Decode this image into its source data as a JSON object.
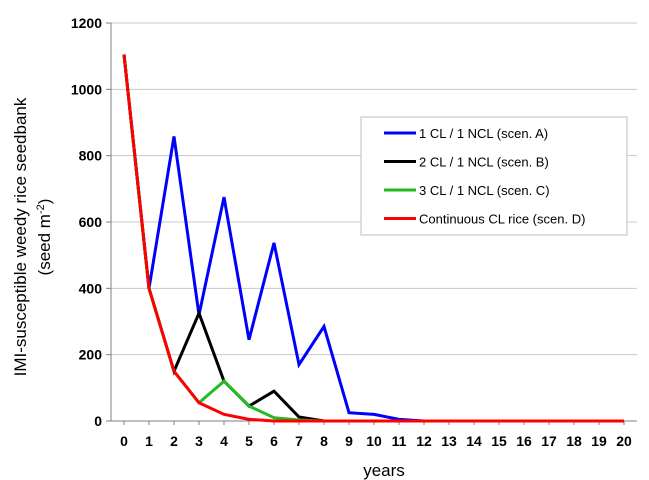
{
  "chart_data": {
    "type": "line",
    "xlabel": "years",
    "ylabel_line1": "IMI-susceptible weedy rice seedbank",
    "ylabel_line2_prefix": "(seed m",
    "ylabel_line2_sup": "-2",
    "ylabel_line2_suffix": ")",
    "xlim": [
      0,
      20
    ],
    "ylim": [
      0,
      1200
    ],
    "yticks": [
      0,
      200,
      400,
      600,
      800,
      1000,
      1200
    ],
    "x": [
      0,
      1,
      2,
      3,
      4,
      5,
      6,
      7,
      8,
      9,
      10,
      11,
      12,
      13,
      14,
      15,
      16,
      17,
      18,
      19,
      20
    ],
    "grid": "horizontal",
    "legend_position": "upper-right",
    "series": [
      {
        "name": "1 CL / 1 NCL (scen. A)",
        "color": "#0000ff",
        "values": [
          1105,
          400,
          858,
          320,
          675,
          245,
          537,
          170,
          285,
          25,
          20,
          5,
          0,
          0,
          0,
          0,
          0,
          0,
          0,
          0,
          0
        ]
      },
      {
        "name": "2 CL / 1 NCL (scen. B)",
        "color": "#000000",
        "values": [
          1105,
          400,
          150,
          325,
          120,
          45,
          90,
          12,
          0,
          0,
          0,
          0,
          0,
          0,
          0,
          0,
          0,
          0,
          0,
          0,
          0
        ]
      },
      {
        "name": "3 CL / 1 NCL (scen. C)",
        "color": "#22bb22",
        "values": [
          1105,
          400,
          150,
          55,
          120,
          45,
          10,
          3,
          0,
          0,
          0,
          0,
          0,
          0,
          0,
          0,
          0,
          0,
          0,
          0,
          0
        ]
      },
      {
        "name": "Continuous CL rice (scen. D)",
        "color": "#ff0000",
        "values": [
          1105,
          400,
          150,
          55,
          20,
          5,
          0,
          0,
          0,
          0,
          0,
          0,
          0,
          0,
          0,
          0,
          0,
          0,
          0,
          0,
          0
        ]
      }
    ]
  }
}
